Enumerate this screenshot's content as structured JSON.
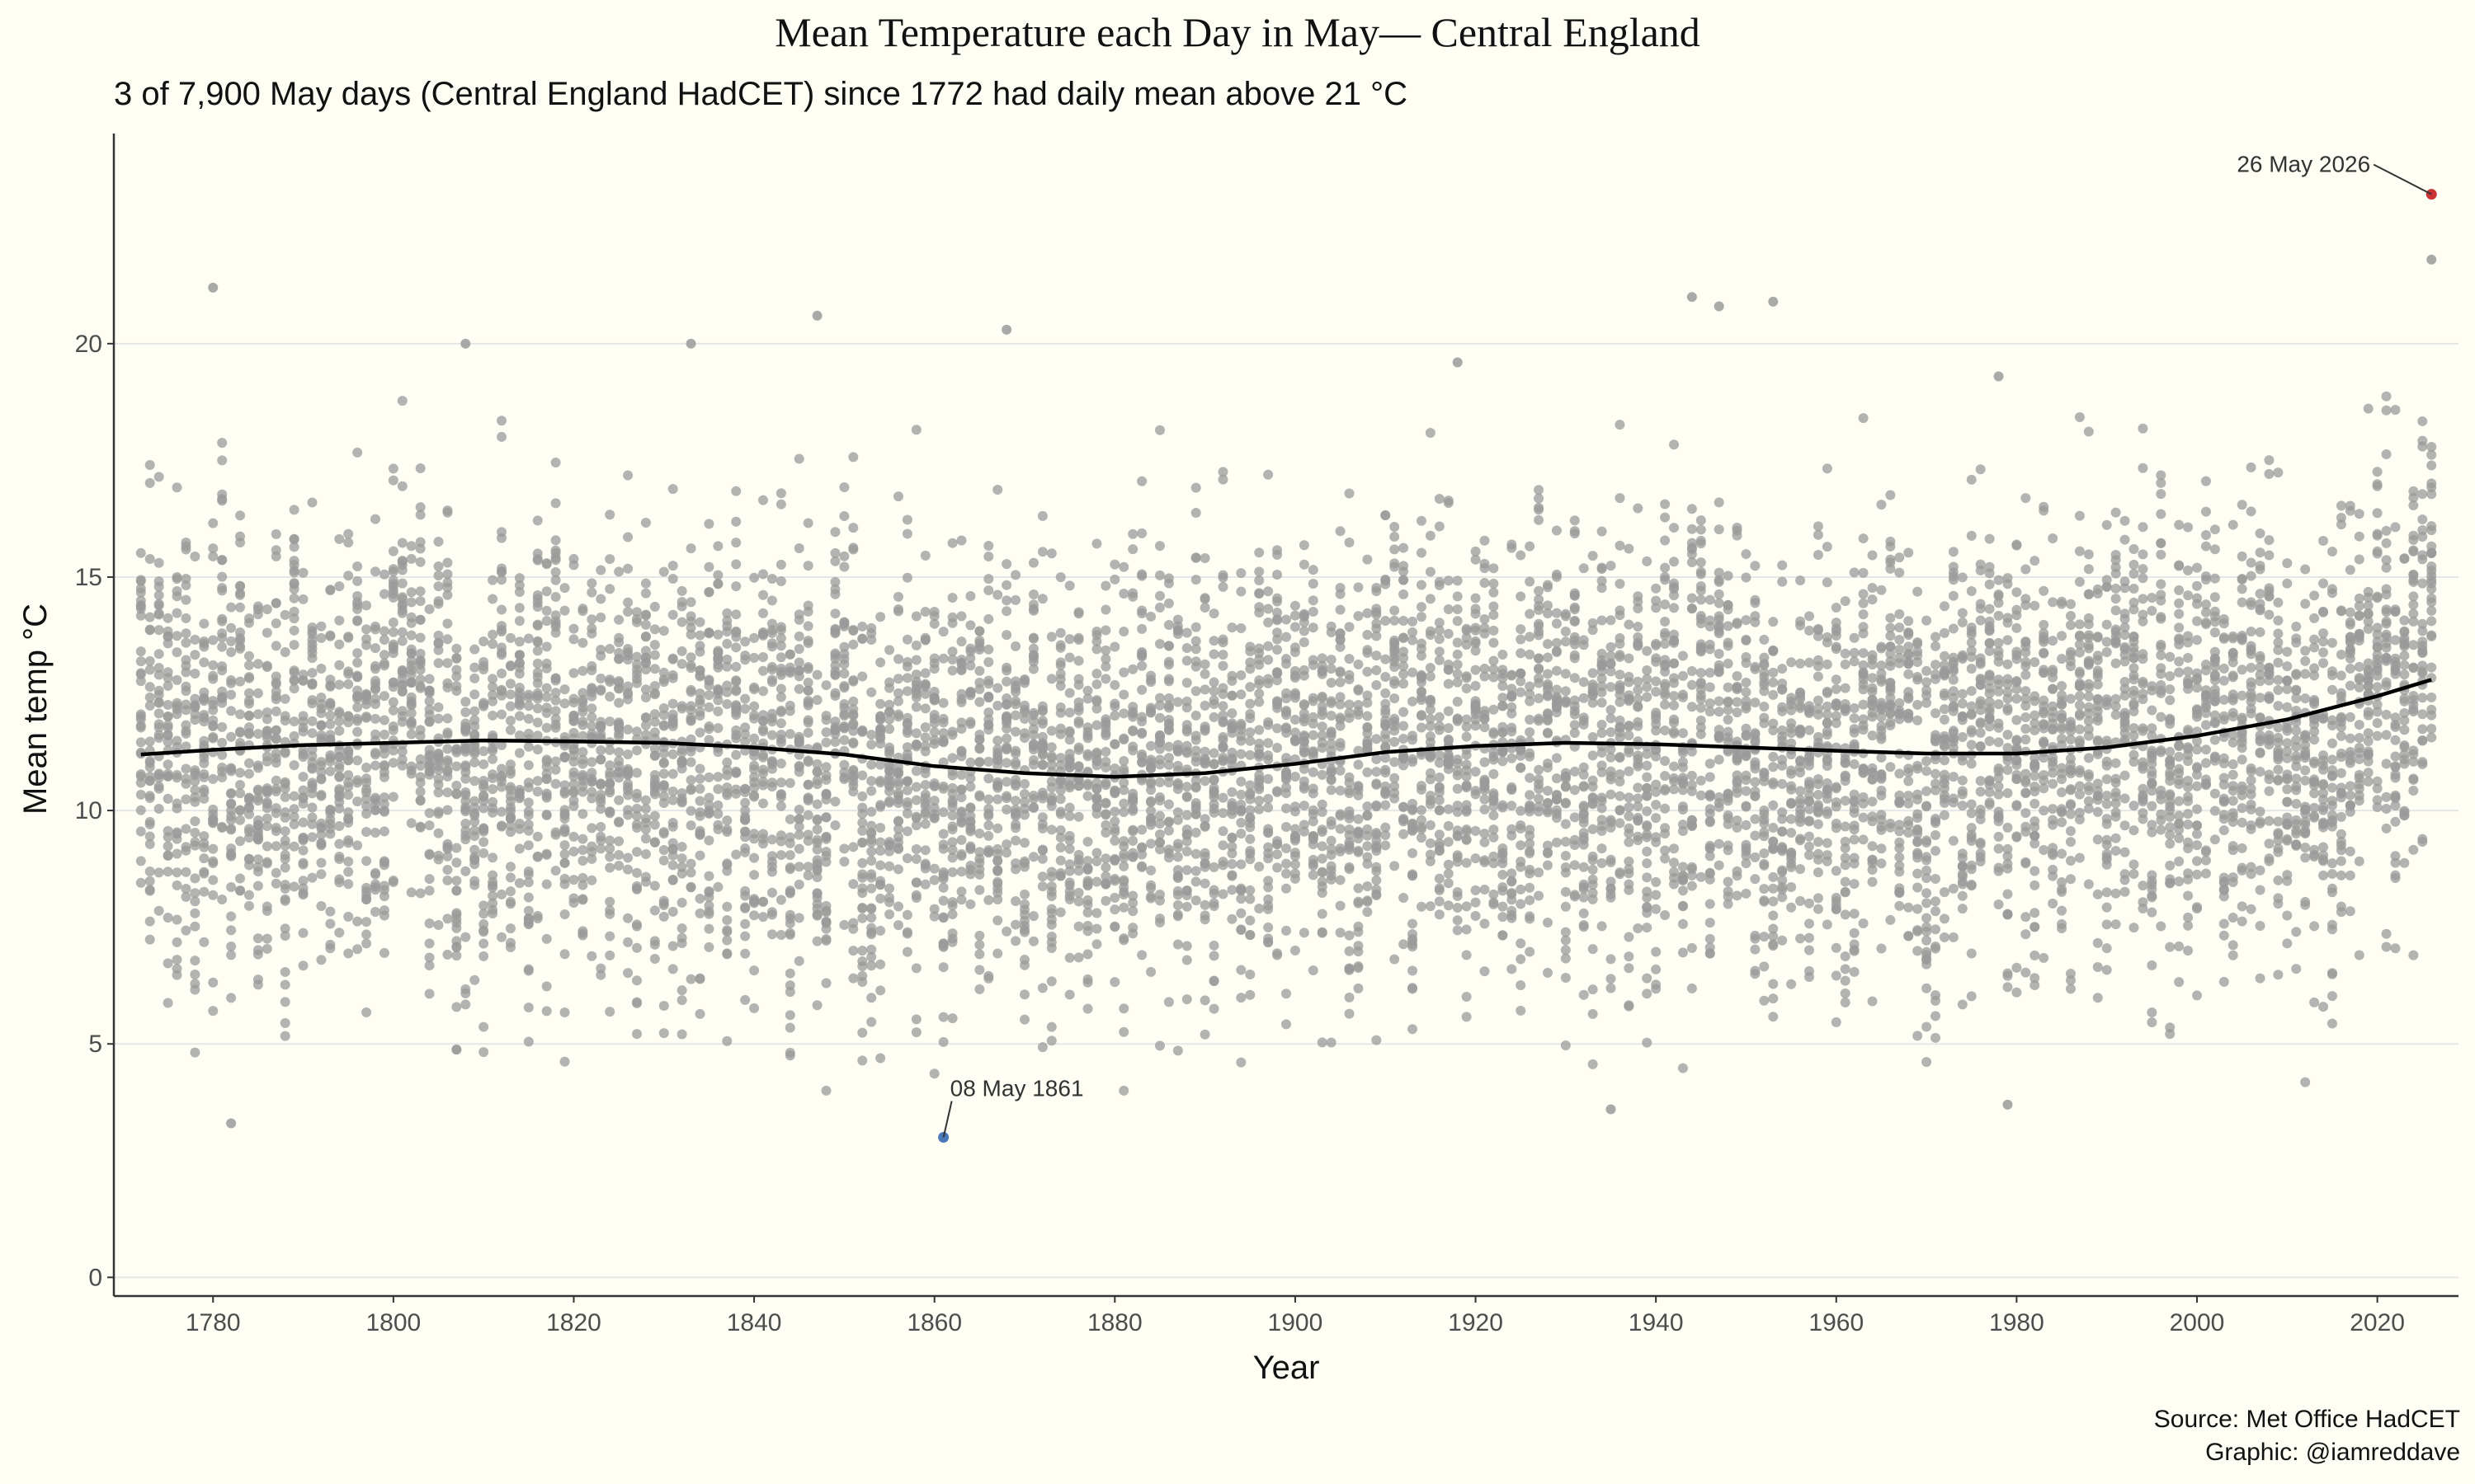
{
  "chart_data": {
    "type": "scatter",
    "title": "Mean Temperature each Day in May— Central England",
    "subtitle": "3 of 7,900 May days (Central England HadCET) since 1772 had daily mean above 21 °C",
    "xlabel": "Year",
    "ylabel": "Mean temp °C",
    "xlim": [
      1769,
      2029
    ],
    "ylim": [
      -0.4,
      24.5
    ],
    "x_ticks": [
      1780,
      1800,
      1820,
      1840,
      1860,
      1880,
      1900,
      1920,
      1940,
      1960,
      1980,
      2000,
      2020
    ],
    "y_ticks": [
      0,
      5,
      10,
      15,
      20
    ],
    "grid": "horizontal major",
    "legend": "none",
    "caption": [
      "Source: Met Office HadCET",
      "Graphic: @iamreddave"
    ],
    "colors": {
      "points": "#9a9a9a",
      "trend": "#000000",
      "max_point": "#cc3333",
      "min_point": "#4a78b8",
      "background": "#fffef5",
      "grid": "#e6e6e6"
    },
    "x_range_years": [
      1772,
      2026
    ],
    "trend_line": {
      "x": [
        1772,
        1780,
        1790,
        1800,
        1810,
        1820,
        1830,
        1840,
        1850,
        1860,
        1870,
        1880,
        1890,
        1900,
        1910,
        1920,
        1930,
        1940,
        1950,
        1960,
        1970,
        1980,
        1990,
        2000,
        2010,
        2020,
        2026
      ],
      "y": [
        11.2,
        11.3,
        11.4,
        11.45,
        11.5,
        11.48,
        11.45,
        11.35,
        11.2,
        10.95,
        10.8,
        10.72,
        10.8,
        11.0,
        11.25,
        11.38,
        11.45,
        11.42,
        11.35,
        11.28,
        11.22,
        11.22,
        11.35,
        11.6,
        11.95,
        12.45,
        12.8
      ]
    },
    "notable_points": [
      {
        "x": 1780,
        "y": 21.2
      },
      {
        "x": 1782,
        "y": 3.3
      },
      {
        "x": 1808,
        "y": 20.0
      },
      {
        "x": 1833,
        "y": 20.0
      },
      {
        "x": 1847,
        "y": 20.6
      },
      {
        "x": 1868,
        "y": 20.3
      },
      {
        "x": 1918,
        "y": 19.6
      },
      {
        "x": 1935,
        "y": 3.6
      },
      {
        "x": 1944,
        "y": 21.0
      },
      {
        "x": 1947,
        "y": 20.8
      },
      {
        "x": 1953,
        "y": 20.9
      },
      {
        "x": 1978,
        "y": 19.3
      },
      {
        "x": 1979,
        "y": 3.7
      },
      {
        "x": 2026,
        "y": 21.8
      }
    ],
    "highlights": [
      {
        "label": "26 May 2026",
        "x": 2026,
        "y": 23.2,
        "color": "#cc3333"
      },
      {
        "label": "08 May 1861",
        "x": 1861,
        "y": 3.0,
        "color": "#4a78b8"
      }
    ]
  }
}
